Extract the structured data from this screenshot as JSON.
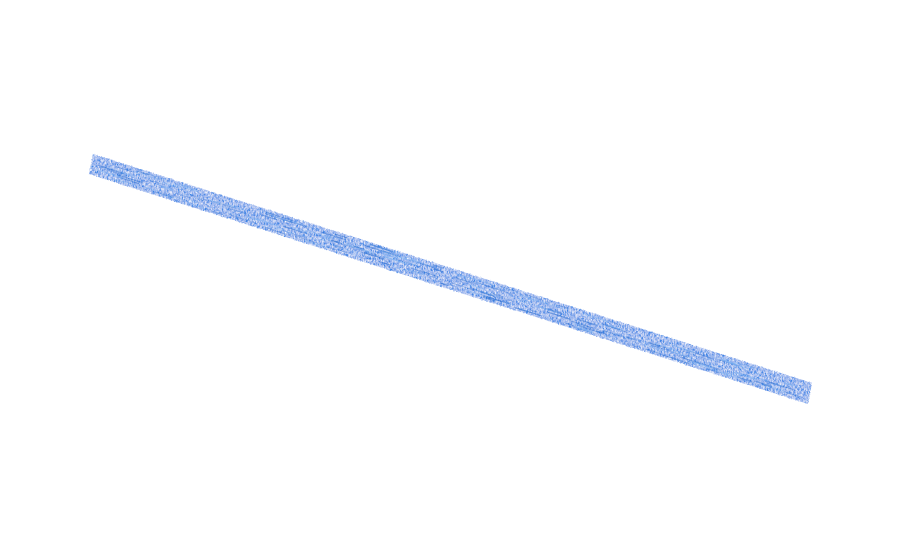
{
  "canvas": {
    "background": "#ffffff"
  },
  "stroke": {
    "kind": "crayon-textured straight line",
    "color": "#3d86e6",
    "highlight_color": "#7eb3f2",
    "shadow_color": "#2a6fd0"
  }
}
